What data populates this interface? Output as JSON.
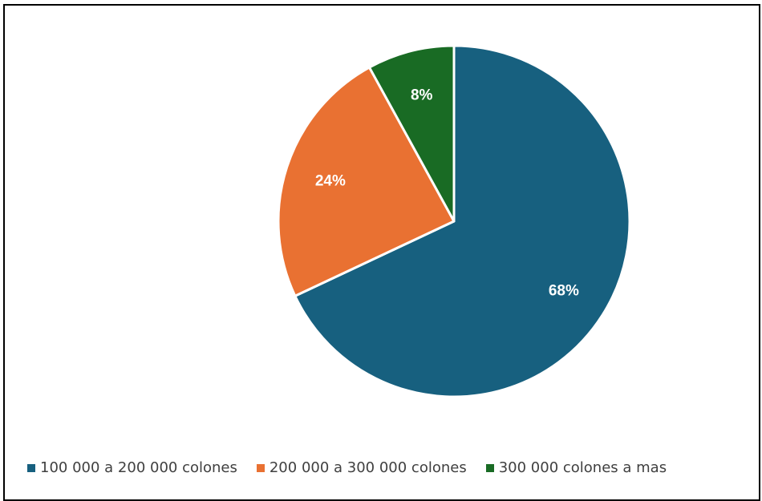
{
  "chart_data": {
    "type": "pie",
    "title": "",
    "slices": [
      {
        "name": "100 000 a 200 000 colones",
        "value": 68,
        "label": "68%",
        "color": "#17607f"
      },
      {
        "name": "200 000 a 300 000 colones",
        "value": 24,
        "label": "24%",
        "color": "#e97132"
      },
      {
        "name": "300 000 colones a mas",
        "value": 8,
        "label": "8%",
        "color": "#196b24"
      }
    ],
    "legend_position": "bottom",
    "slice_border_color": "#ffffff"
  }
}
